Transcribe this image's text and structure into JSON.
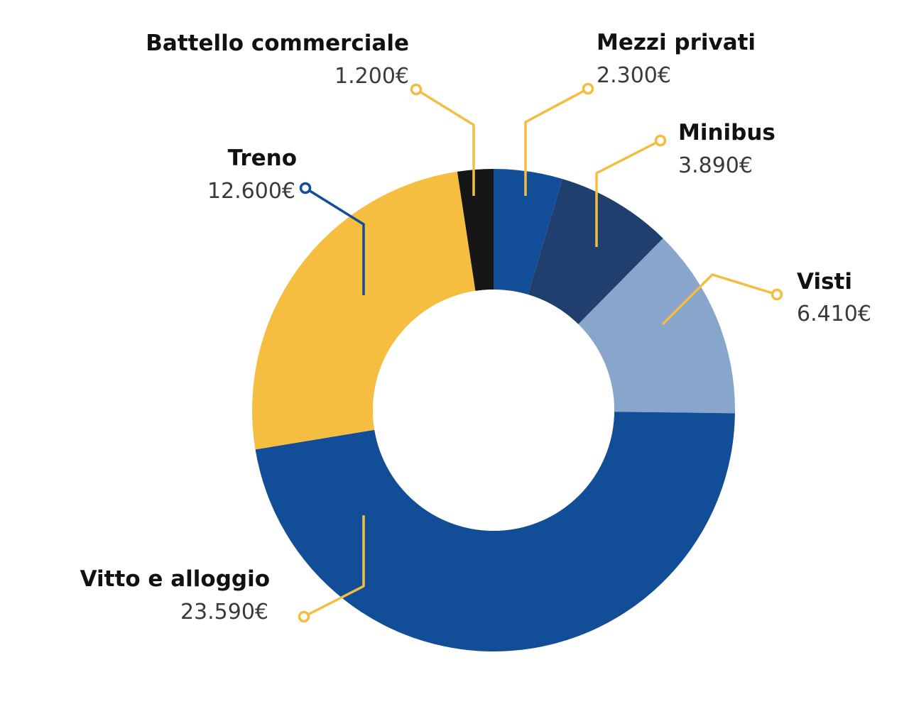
{
  "chart_data": {
    "type": "pie",
    "donut": true,
    "start_angle_deg": 0,
    "direction": "clockwise-from-top",
    "slices": [
      {
        "label": "Mezzi privati",
        "value": 2300,
        "value_label": "2.300€",
        "color": "#124e98",
        "leader_color": "#f4bd41"
      },
      {
        "label": "Minibus",
        "value": 3890,
        "value_label": "3.890€",
        "color": "#213f6e",
        "leader_color": "#f4bd41"
      },
      {
        "label": "Visti",
        "value": 6410,
        "value_label": "6.410€",
        "color": "#88a6cb",
        "leader_color": "#f4bd41"
      },
      {
        "label": "Vitto e alloggio",
        "value": 23590,
        "value_label": "23.590€",
        "color": "#124e98",
        "leader_color": "#f4bd41"
      },
      {
        "label": "Treno",
        "value": 12600,
        "value_label": "12.600€",
        "color": "#f6be41",
        "leader_color": "#124e98"
      },
      {
        "label": "Battello commerciale",
        "value": 1200,
        "value_label": "1.200€",
        "color": "#161616",
        "leader_color": "#f4bd41"
      }
    ],
    "legend": "none"
  }
}
